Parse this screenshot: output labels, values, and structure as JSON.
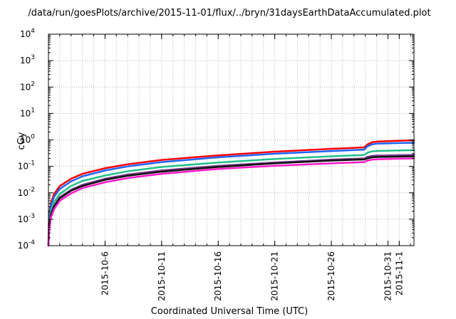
{
  "chart_data": {
    "type": "line",
    "title": "/data/run/goesPlots/archive/2015-11-01/flux/../bryn/31daysEarthDataAccumulated.plot",
    "xlabel": "Coordinated Universal Time (UTC)",
    "ylabel": "cGy",
    "yscale": "log",
    "ylim": [
      0.0001,
      10000
    ],
    "xlim": [
      1,
      33.3
    ],
    "grid": true,
    "y_ticks": [
      {
        "base": "10",
        "exp": "-4"
      },
      {
        "base": "10",
        "exp": "-3"
      },
      {
        "base": "10",
        "exp": "-2"
      },
      {
        "base": "10",
        "exp": "-1"
      },
      {
        "base": "10",
        "exp": "0"
      },
      {
        "base": "10",
        "exp": "1"
      },
      {
        "base": "10",
        "exp": "2"
      },
      {
        "base": "10",
        "exp": "3"
      },
      {
        "base": "10",
        "exp": "4"
      }
    ],
    "x_ticks": [
      {
        "label": "2015-10-6",
        "x": 6
      },
      {
        "label": "2015-10-11",
        "x": 11
      },
      {
        "label": "2015-10-16",
        "x": 16
      },
      {
        "label": "2015-10-21",
        "x": 21
      },
      {
        "label": "2015-10-26",
        "x": 26
      },
      {
        "label": "2015-10-31",
        "x": 31
      },
      {
        "label": "2015-11-1",
        "x": 32
      }
    ],
    "x": [
      1.0,
      1.05,
      1.2,
      1.5,
      2.0,
      3.0,
      4.0,
      6.0,
      8.0,
      11.0,
      16.0,
      21.0,
      26.0,
      28.9,
      29.2,
      29.6,
      30.0,
      31.0,
      32.0,
      33.3
    ],
    "series": [
      {
        "color": "#ff0000",
        "values": [
          0.0001,
          0.0012,
          0.004,
          0.009,
          0.018,
          0.034,
          0.052,
          0.085,
          0.12,
          0.175,
          0.26,
          0.36,
          0.46,
          0.52,
          0.68,
          0.82,
          0.86,
          0.9,
          0.93,
          0.97
        ]
      },
      {
        "color": "#1e64ff",
        "values": [
          0.0001,
          0.0009,
          0.0032,
          0.007,
          0.014,
          0.027,
          0.042,
          0.07,
          0.1,
          0.145,
          0.22,
          0.3,
          0.38,
          0.43,
          0.58,
          0.68,
          0.72,
          0.74,
          0.76,
          0.78
        ]
      },
      {
        "color": "#20c08a",
        "values": [
          0.0001,
          0.0006,
          0.0021,
          0.0045,
          0.009,
          0.018,
          0.028,
          0.045,
          0.065,
          0.095,
          0.14,
          0.19,
          0.24,
          0.27,
          0.33,
          0.37,
          0.38,
          0.39,
          0.4,
          0.41
        ]
      },
      {
        "color": "#7a3a8c",
        "values": [
          0.0001,
          0.0004,
          0.0015,
          0.0033,
          0.0068,
          0.013,
          0.02,
          0.034,
          0.049,
          0.07,
          0.105,
          0.14,
          0.18,
          0.2,
          0.23,
          0.25,
          0.255,
          0.26,
          0.265,
          0.27
        ]
      },
      {
        "color": "#111111",
        "values": [
          0.0001,
          0.00038,
          0.0014,
          0.003,
          0.0062,
          0.012,
          0.018,
          0.031,
          0.044,
          0.063,
          0.095,
          0.13,
          0.165,
          0.182,
          0.2,
          0.22,
          0.225,
          0.23,
          0.235,
          0.24
        ]
      },
      {
        "color": "#ff1ac8",
        "values": [
          0.0001,
          0.0003,
          0.0011,
          0.0024,
          0.005,
          0.0095,
          0.015,
          0.025,
          0.036,
          0.052,
          0.08,
          0.105,
          0.13,
          0.145,
          0.165,
          0.18,
          0.185,
          0.19,
          0.195,
          0.2
        ]
      }
    ]
  }
}
